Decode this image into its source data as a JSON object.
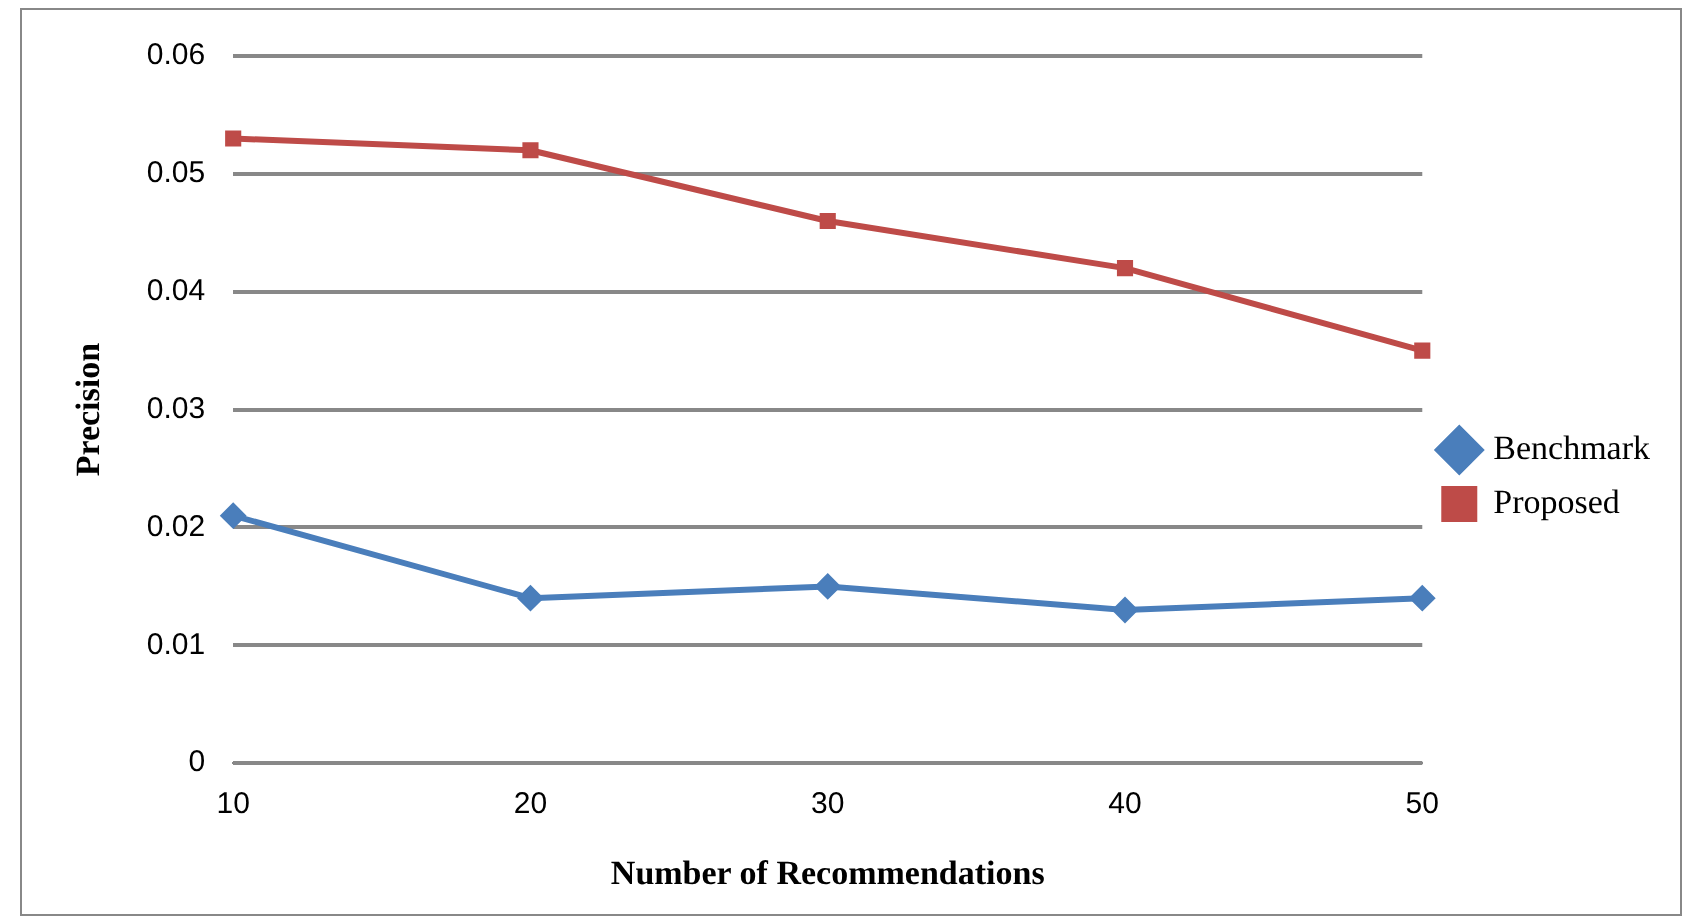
{
  "chart_data": {
    "type": "line",
    "xlabel": "Number of Recommendations",
    "ylabel": "Precision",
    "categories": [
      "10",
      "20",
      "30",
      "40",
      "50"
    ],
    "series": [
      {
        "name": "Benchmark",
        "color": "#4a7ebb",
        "marker": "diamond",
        "values": [
          0.021,
          0.014,
          0.015,
          0.013,
          0.014
        ]
      },
      {
        "name": "Proposed",
        "color": "#be4b48",
        "marker": "square",
        "values": [
          0.053,
          0.052,
          0.046,
          0.042,
          0.035
        ]
      }
    ],
    "ylim": [
      0,
      0.06
    ],
    "yticks": [
      0,
      0.01,
      0.02,
      0.03,
      0.04,
      0.05,
      0.06
    ],
    "grid": "y",
    "legend": "right"
  }
}
